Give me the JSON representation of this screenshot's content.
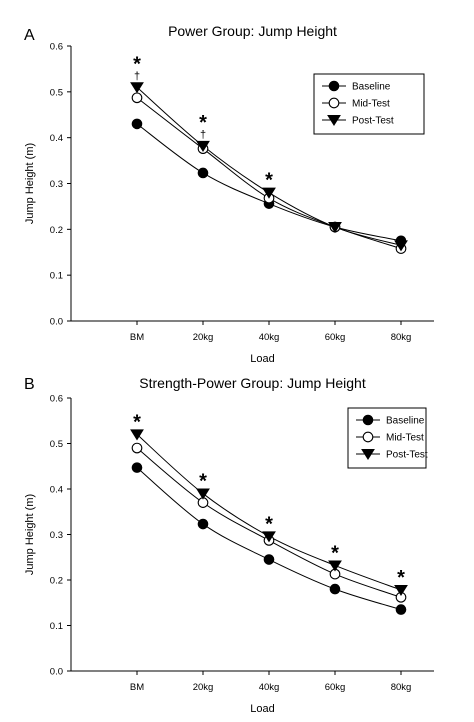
{
  "chart_data": [
    {
      "type": "line",
      "panel_letter": "A",
      "title": "Power Group: Jump Height",
      "xlabel": "Load",
      "ylabel": "Jump Height (m)",
      "categories": [
        "BM",
        "20kg",
        "40kg",
        "60kg",
        "80kg"
      ],
      "ylim": [
        0,
        0.6
      ],
      "yticks": [
        "0.0",
        "0.1",
        "0.2",
        "0.3",
        "0.4",
        "0.5",
        "0.6"
      ],
      "grid": false,
      "legend_position": "top-right",
      "series": [
        {
          "name": "Baseline",
          "marker": "filled-circle",
          "values": [
            0.43,
            0.323,
            0.256,
            0.205,
            0.175
          ]
        },
        {
          "name": "Mid-Test",
          "marker": "open-circle",
          "values": [
            0.487,
            0.376,
            0.268,
            0.205,
            0.158
          ]
        },
        {
          "name": "Post-Test",
          "marker": "filled-triangle-down",
          "values": [
            0.51,
            0.382,
            0.28,
            0.205,
            0.165
          ]
        }
      ],
      "annotations": [
        {
          "category": "BM",
          "symbols": [
            "*",
            "†"
          ]
        },
        {
          "category": "20kg",
          "symbols": [
            "*",
            "†"
          ]
        },
        {
          "category": "40kg",
          "symbols": [
            "*"
          ]
        }
      ]
    },
    {
      "type": "line",
      "panel_letter": "B",
      "title": "Strength-Power Group: Jump Height",
      "xlabel": "Load",
      "ylabel": "Jump Height (m)",
      "categories": [
        "BM",
        "20kg",
        "40kg",
        "60kg",
        "80kg"
      ],
      "ylim": [
        0,
        0.6
      ],
      "yticks": [
        "0.0",
        "0.1",
        "0.2",
        "0.3",
        "0.4",
        "0.5",
        "0.6"
      ],
      "grid": false,
      "legend_position": "top-right",
      "series": [
        {
          "name": "Baseline",
          "marker": "filled-circle",
          "values": [
            0.447,
            0.323,
            0.245,
            0.18,
            0.135
          ]
        },
        {
          "name": "Mid-Test",
          "marker": "open-circle",
          "values": [
            0.49,
            0.37,
            0.287,
            0.213,
            0.162
          ]
        },
        {
          "name": "Post-Test",
          "marker": "filled-triangle-down",
          "values": [
            0.52,
            0.39,
            0.296,
            0.232,
            0.178
          ]
        }
      ],
      "annotations": [
        {
          "category": "BM",
          "symbols": [
            "*"
          ]
        },
        {
          "category": "20kg",
          "symbols": [
            "*"
          ]
        },
        {
          "category": "40kg",
          "symbols": [
            "*"
          ]
        },
        {
          "category": "60kg",
          "symbols": [
            "*"
          ]
        },
        {
          "category": "80kg",
          "symbols": [
            "*"
          ]
        }
      ]
    }
  ]
}
